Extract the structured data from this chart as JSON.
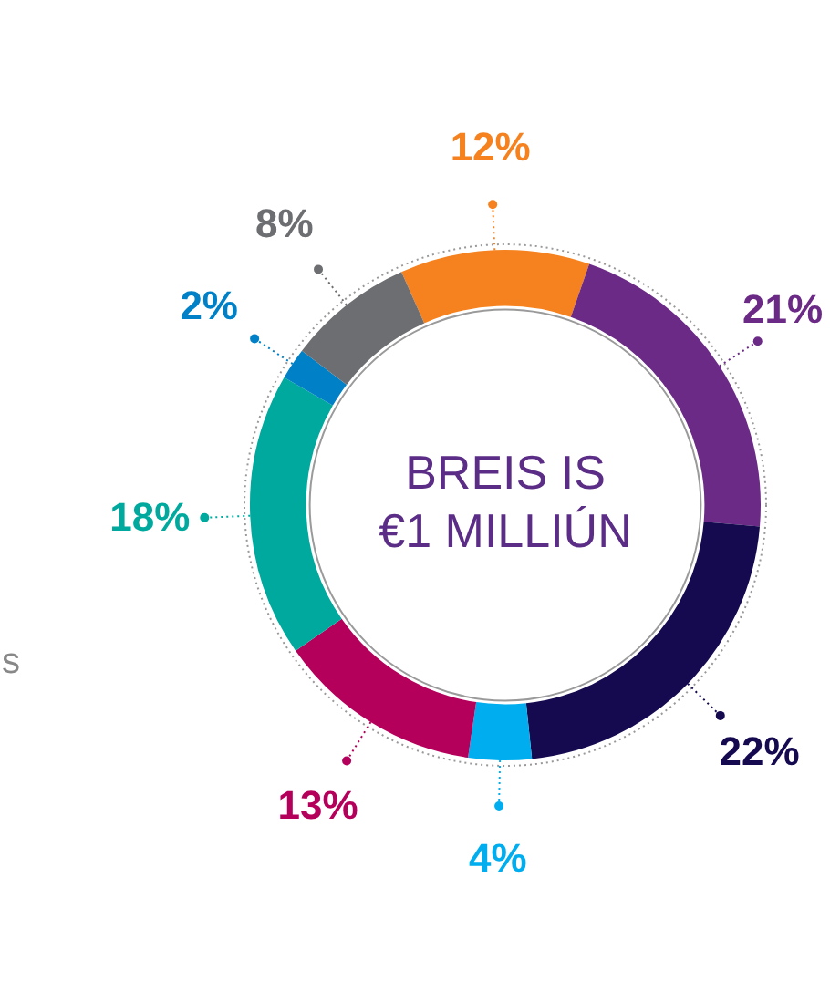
{
  "chart_data": {
    "type": "donut",
    "title": "BREIS IS\n€1 MILLIÚN",
    "categories": [
      null,
      null,
      null,
      null,
      null,
      null,
      null,
      null
    ],
    "values": [
      12,
      21,
      22,
      4,
      13,
      18,
      2,
      8
    ],
    "colors": [
      "#f5821f",
      "#6b2a86",
      "#150a4f",
      "#00aeef",
      "#b5005b",
      "#00a99d",
      "#0080c6",
      "#6d6e71"
    ],
    "value_labels": [
      "12%",
      "21%",
      "22%",
      "4%",
      "13%",
      "18%",
      "2%",
      "8%"
    ],
    "annotations": [
      "s"
    ],
    "legend": false
  }
}
